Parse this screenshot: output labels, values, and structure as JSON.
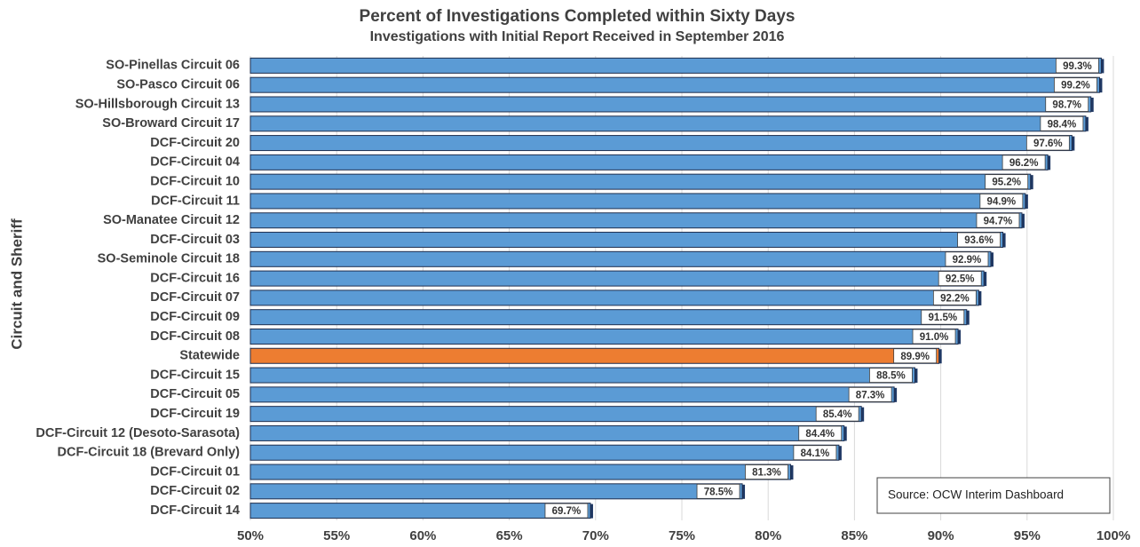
{
  "chart_data": {
    "type": "bar",
    "orientation": "horizontal",
    "title": "Percent of Investigations Completed within Sixty Days",
    "subtitle": "Investigations with Initial Report Received in September 2016",
    "y_label": "Circuit and Sheriff",
    "annotation": "Source: OCW Interim Dashboard",
    "categories": [
      "SO-Pinellas Circuit 06",
      "SO-Pasco Circuit 06",
      "SO-Hillsborough Circuit 13",
      "SO-Broward Circuit 17",
      "DCF-Circuit 20",
      "DCF-Circuit 04",
      "DCF-Circuit 10",
      "DCF-Circuit 11",
      "SO-Manatee Circuit 12",
      "DCF-Circuit 03",
      "SO-Seminole Circuit 18",
      "DCF-Circuit 16",
      "DCF-Circuit 07",
      "DCF-Circuit 09",
      "DCF-Circuit 08",
      "Statewide",
      "DCF-Circuit 15",
      "DCF-Circuit 05",
      "DCF-Circuit 19",
      "DCF-Circuit 12 (Desoto-Sarasota)",
      "DCF-Circuit 18 (Brevard Only)",
      "DCF-Circuit 01",
      "DCF-Circuit 02",
      "DCF-Circuit 14"
    ],
    "values": [
      99.3,
      99.2,
      98.7,
      98.4,
      97.6,
      96.2,
      95.2,
      94.9,
      94.7,
      93.6,
      92.9,
      92.5,
      92.2,
      91.5,
      91.0,
      89.9,
      88.5,
      87.3,
      85.4,
      84.4,
      84.1,
      81.3,
      78.5,
      69.7
    ],
    "value_labels": [
      "99.3%",
      "99.2%",
      "98.7%",
      "98.4%",
      "97.6%",
      "96.2%",
      "95.2%",
      "94.9%",
      "94.7%",
      "93.6%",
      "92.9%",
      "92.5%",
      "92.2%",
      "91.5%",
      "91.0%",
      "89.9%",
      "88.5%",
      "87.3%",
      "85.4%",
      "84.4%",
      "84.1%",
      "81.3%",
      "78.5%",
      "69.7%"
    ],
    "colors": [
      "#5b9bd5",
      "#5b9bd5",
      "#5b9bd5",
      "#5b9bd5",
      "#5b9bd5",
      "#5b9bd5",
      "#5b9bd5",
      "#5b9bd5",
      "#5b9bd5",
      "#5b9bd5",
      "#5b9bd5",
      "#5b9bd5",
      "#5b9bd5",
      "#5b9bd5",
      "#5b9bd5",
      "#ed7d31",
      "#5b9bd5",
      "#5b9bd5",
      "#5b9bd5",
      "#5b9bd5",
      "#5b9bd5",
      "#5b9bd5",
      "#5b9bd5",
      "#5b9bd5"
    ],
    "xlim": [
      50,
      100
    ],
    "xticks": [
      {
        "value": 50,
        "label": "50%"
      },
      {
        "value": 55,
        "label": "55%"
      },
      {
        "value": 60,
        "label": "60%"
      },
      {
        "value": 65,
        "label": "65%"
      },
      {
        "value": 70,
        "label": "70%"
      },
      {
        "value": 75,
        "label": "75%"
      },
      {
        "value": 80,
        "label": "80%"
      },
      {
        "value": 85,
        "label": "85%"
      },
      {
        "value": 90,
        "label": "90%"
      },
      {
        "value": 95,
        "label": "95%"
      },
      {
        "value": 100,
        "label": "100%"
      }
    ],
    "grid": true
  }
}
